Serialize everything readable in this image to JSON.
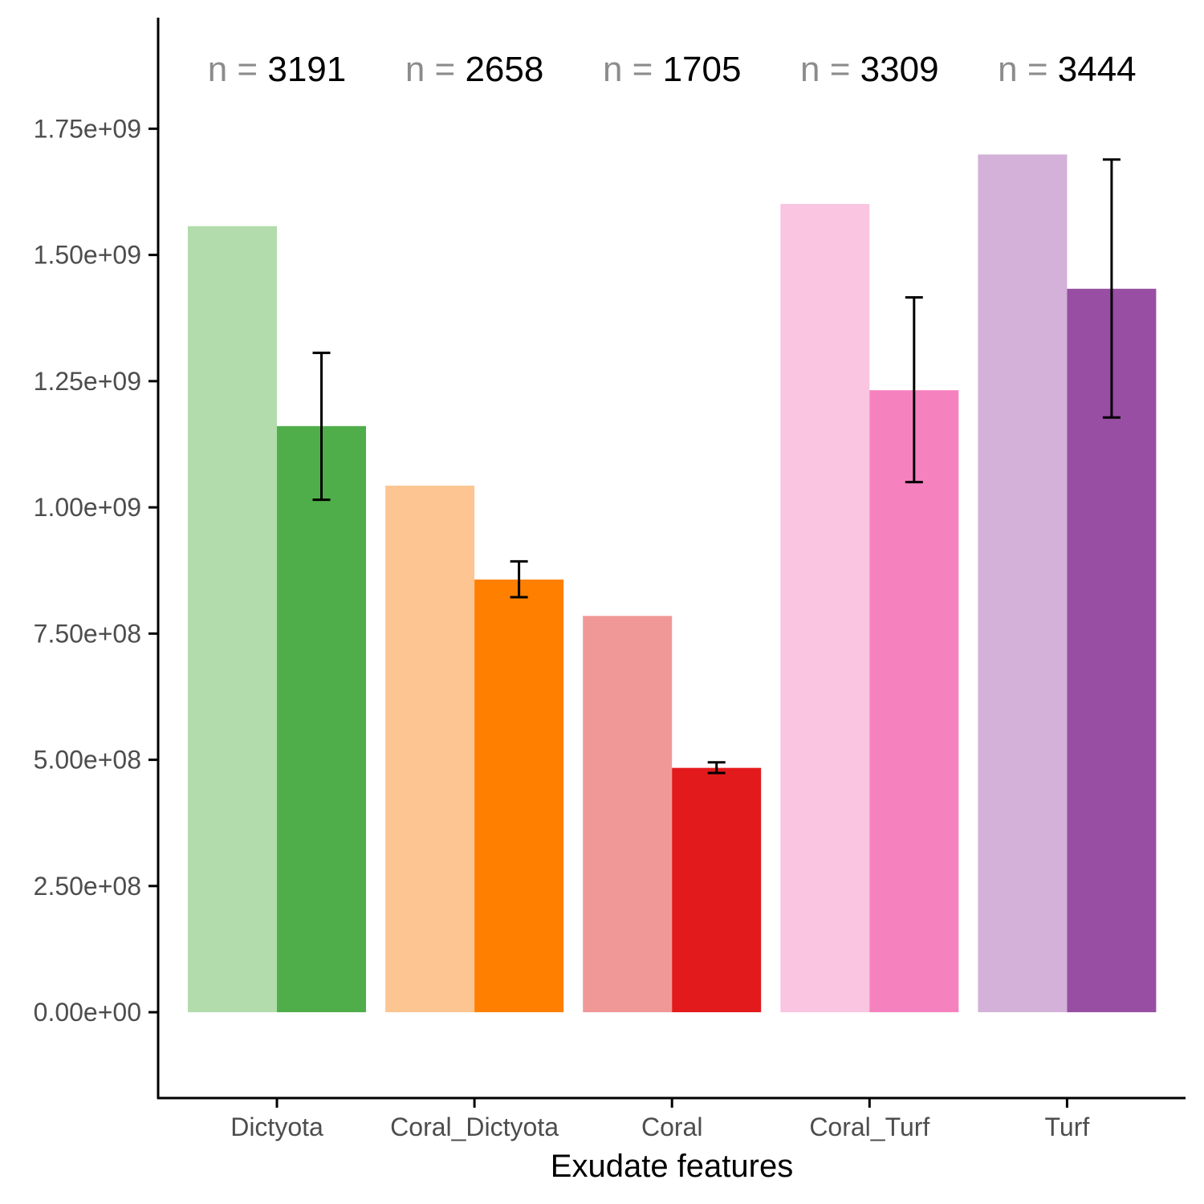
{
  "chart_data": {
    "type": "bar",
    "title": "",
    "xlabel": "Exudate features",
    "ylabel": "",
    "ylim": [
      -170000000,
      1970000000
    ],
    "y_ticks": [
      0,
      250000000,
      500000000,
      750000000,
      1000000000,
      1250000000,
      1500000000,
      1750000000
    ],
    "y_tick_labels": [
      "0.00e+00",
      "2.50e+08",
      "5.00e+08",
      "7.50e+08",
      "1.00e+09",
      "1.25e+09",
      "1.50e+09",
      "1.75e+09"
    ],
    "grid": false,
    "legend": "none",
    "categories": [
      "Dictyota",
      "Coral_Dictyota",
      "Coral",
      "Coral_Turf",
      "Turf"
    ],
    "n_prefix": "n =",
    "n_counts": [
      "3191",
      "2658",
      "1705",
      "3309",
      "3444"
    ],
    "series": [
      {
        "values": [
          1557000000,
          1043000000,
          785000000,
          1601000000,
          1699000000
        ],
        "colors": [
          "#b2dcac",
          "#fdc591",
          "#f09898",
          "#fac5e0",
          "#d3b1d8"
        ]
      },
      {
        "values": [
          1161000000,
          857000000,
          484000000,
          1232000000,
          1433000000
        ],
        "colors": [
          "#4fae4a",
          "#ff7f00",
          "#e31a1c",
          "#f681bf",
          "#984ea3"
        ],
        "error_low": [
          1015000000,
          822000000,
          474000000,
          1050000000,
          1178000000
        ],
        "error_high": [
          1306000000,
          893000000,
          495000000,
          1416000000,
          1689000000
        ]
      }
    ]
  }
}
